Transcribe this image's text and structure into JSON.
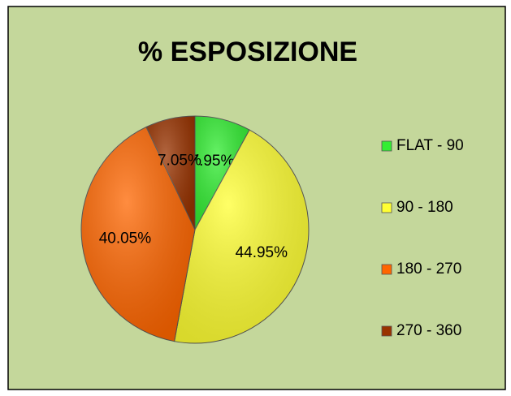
{
  "chart_data": {
    "type": "pie",
    "title": "% ESPOSIZIONE",
    "categories": [
      "FLAT - 90",
      "90 - 180",
      "180 - 270",
      "270 - 360"
    ],
    "values": [
      7.95,
      44.95,
      40.05,
      7.05
    ],
    "value_labels": [
      "7.95%",
      "44.95%",
      "40.05%",
      "7.05%"
    ],
    "colors": [
      "#33ee33",
      "#ffff33",
      "#ff6600",
      "#993300"
    ],
    "legend": "right"
  }
}
